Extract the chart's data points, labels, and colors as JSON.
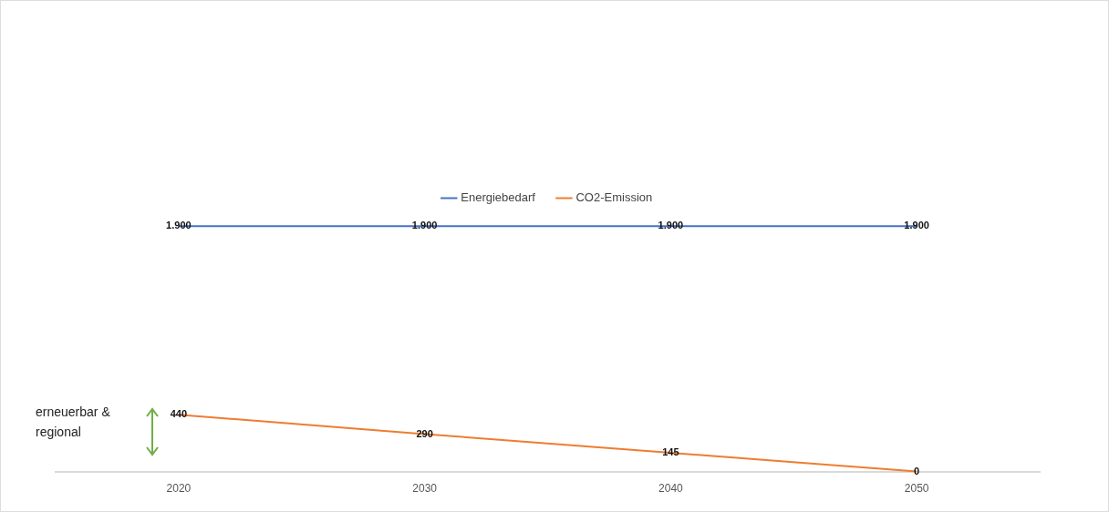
{
  "chart_data": {
    "type": "line",
    "categories": [
      "2020",
      "2030",
      "2040",
      "2050"
    ],
    "series": [
      {
        "name": "Energiebedarf",
        "color": "#4472c4",
        "values": [
          1900,
          1900,
          1900,
          1900
        ],
        "value_labels": [
          "1.900",
          "1.900",
          "1.900",
          "1.900"
        ]
      },
      {
        "name": "CO2-Emission",
        "color": "#ed7d31",
        "values": [
          440,
          290,
          145,
          0
        ],
        "value_labels": [
          "440",
          "290",
          "145",
          "0"
        ]
      }
    ],
    "legend": "top",
    "marker": "none",
    "grid": false,
    "annotations": [
      "erneuerbar & regional"
    ]
  }
}
